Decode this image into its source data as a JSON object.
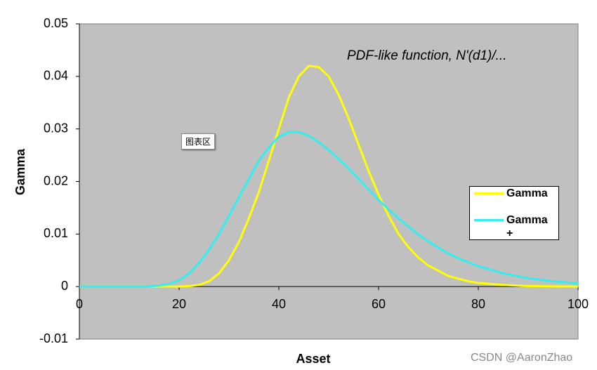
{
  "chart_data": {
    "type": "line",
    "annotation": "PDF-like function, N'(d1)/...",
    "x_label": "Asset",
    "y_label": "Gamma",
    "tooltip": "图表区",
    "watermark": "CSDN @AaronZhao",
    "x": [
      0,
      2,
      4,
      6,
      8,
      10,
      12,
      14,
      16,
      18,
      20,
      22,
      24,
      26,
      28,
      30,
      32,
      34,
      36,
      38,
      40,
      42,
      44,
      46,
      48,
      50,
      52,
      54,
      56,
      58,
      60,
      62,
      64,
      66,
      68,
      70,
      72,
      74,
      76,
      78,
      80,
      85,
      90,
      95,
      100
    ],
    "series": [
      {
        "name": "Gamma",
        "color": "#ffff00",
        "values": [
          0,
          0,
          0,
          0,
          0,
          0,
          0,
          0,
          0,
          0,
          0,
          0.0001,
          0.0003,
          0.001,
          0.0025,
          0.005,
          0.0085,
          0.013,
          0.018,
          0.024,
          0.03,
          0.036,
          0.04,
          0.042,
          0.0418,
          0.04,
          0.0365,
          0.032,
          0.027,
          0.022,
          0.0175,
          0.0135,
          0.01,
          0.0075,
          0.0055,
          0.004,
          0.003,
          0.002,
          0.0015,
          0.001,
          0.0007,
          0.0003,
          0.0001,
          5e-05,
          0
        ]
      },
      {
        "name": "Gamma +",
        "color": "#33eeee",
        "values": [
          0,
          0,
          0,
          0,
          0,
          0,
          0,
          0,
          0.0002,
          0.0005,
          0.0012,
          0.0025,
          0.0045,
          0.007,
          0.01,
          0.0135,
          0.017,
          0.0205,
          0.024,
          0.0265,
          0.0285,
          0.0294,
          0.0294,
          0.0287,
          0.0275,
          0.026,
          0.0243,
          0.0225,
          0.0205,
          0.0185,
          0.0165,
          0.0147,
          0.013,
          0.0114,
          0.0099,
          0.0086,
          0.0074,
          0.0063,
          0.0054,
          0.0046,
          0.0039,
          0.0025,
          0.0016,
          0.001,
          0.0006
        ]
      }
    ],
    "xlim": [
      0,
      100
    ],
    "xticks": [
      0,
      20,
      40,
      60,
      80,
      100
    ],
    "ylim": [
      -0.01,
      0.05
    ],
    "yticks": [
      -0.01,
      0,
      0.01,
      0.02,
      0.03,
      0.04,
      0.05
    ],
    "grid": false,
    "legend": "right",
    "plot_background": "#c0c0c0"
  }
}
